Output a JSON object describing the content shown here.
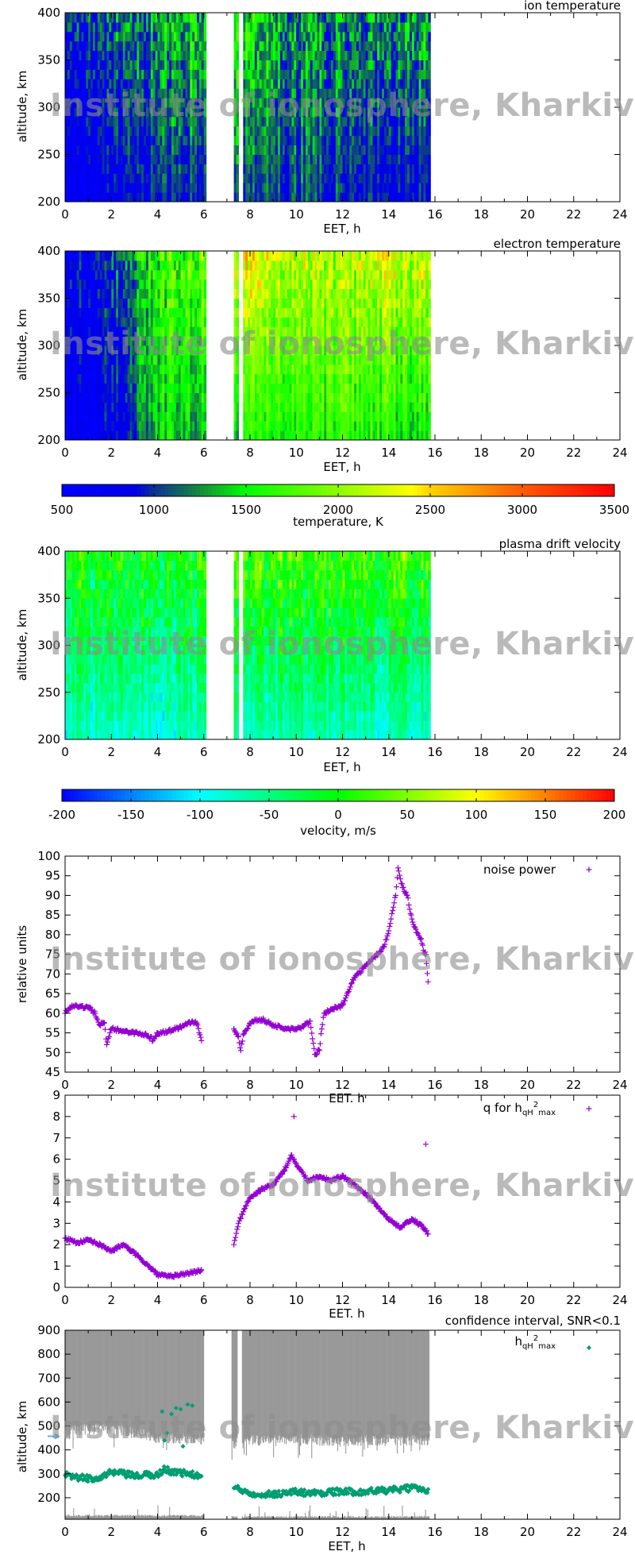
{
  "watermark": "Institute of ionosphere, Kharkiv",
  "colors": {
    "noise_power": "#9400d3",
    "q": "#9400d3",
    "hmax": "#009e73",
    "confidence": "#999999",
    "marker_arrow": "#56b4e9"
  },
  "chart_data": [
    {
      "type": "heatmap",
      "title": "ion temperature",
      "xlabel": "EET, h",
      "ylabel": "altitude, km",
      "xlim": [
        0,
        24
      ],
      "ylim": [
        200,
        400
      ],
      "xticks": [
        "0",
        "2",
        "4",
        "6",
        "8",
        "10",
        "12",
        "14",
        "16",
        "18",
        "20",
        "22",
        "24"
      ],
      "yticks": [
        "200",
        "250",
        "300",
        "350",
        "400"
      ],
      "colorbar": "temperature",
      "data_end_h": 15.75,
      "data_gaps_h": [
        [
          6.0,
          7.2
        ],
        [
          7.45,
          7.65
        ]
      ],
      "hours": [
        0,
        1,
        2,
        3,
        4,
        5,
        6,
        7,
        8,
        9,
        10,
        11,
        12,
        13,
        14,
        15
      ],
      "value_at_400km": [
        900,
        950,
        1000,
        1100,
        1300,
        1450,
        1450,
        1700,
        1500,
        1300,
        1250,
        1250,
        1200,
        1200,
        1250,
        1350
      ],
      "value_at_200km": [
        650,
        650,
        700,
        800,
        1000,
        1000,
        1000,
        900,
        1000,
        1000,
        1050,
        1000,
        950,
        900,
        900,
        900
      ]
    },
    {
      "type": "heatmap",
      "title": "electron temperature",
      "xlabel": "EET, h",
      "ylabel": "altitude, km",
      "xlim": [
        0,
        24
      ],
      "ylim": [
        200,
        400
      ],
      "xticks": [
        "0",
        "2",
        "4",
        "6",
        "8",
        "10",
        "12",
        "14",
        "16",
        "18",
        "20",
        "22",
        "24"
      ],
      "yticks": [
        "200",
        "250",
        "300",
        "350",
        "400"
      ],
      "colorbar": "temperature",
      "data_end_h": 15.75,
      "data_gaps_h": [
        [
          6.0,
          7.2
        ],
        [
          7.45,
          7.65
        ]
      ],
      "hours": [
        0,
        1,
        2,
        3,
        4,
        5,
        6,
        7,
        8,
        9,
        10,
        11,
        12,
        13,
        14,
        15
      ],
      "value_at_400km": [
        800,
        850,
        950,
        1300,
        1700,
        1800,
        1900,
        2200,
        2300,
        2200,
        2200,
        2100,
        2100,
        2200,
        2200,
        2200
      ],
      "value_at_200km": [
        700,
        700,
        800,
        1000,
        1400,
        1400,
        1400,
        1300,
        1500,
        1600,
        1600,
        1600,
        1600,
        1600,
        1500,
        1400
      ]
    },
    {
      "type": "colorbar",
      "name": "temperature",
      "label": "temperature, K",
      "range": [
        500,
        3500
      ],
      "ticks": [
        "500",
        "1000",
        "1500",
        "2000",
        "2500",
        "3000",
        "3500"
      ],
      "stops": [
        [
          500,
          "#0000ff"
        ],
        [
          900,
          "#0000e6"
        ],
        [
          1000,
          "#0a3296"
        ],
        [
          1250,
          "#148c3c"
        ],
        [
          1500,
          "#00ff00"
        ],
        [
          2000,
          "#8cff00"
        ],
        [
          2400,
          "#ffff00"
        ],
        [
          2500,
          "#ffd200"
        ],
        [
          3000,
          "#ff5a00"
        ],
        [
          3500,
          "#ff0000"
        ]
      ]
    },
    {
      "type": "heatmap",
      "title": "plasma drift velocity",
      "xlabel": "EET, h",
      "ylabel": "altitude, km",
      "xlim": [
        0,
        24
      ],
      "ylim": [
        200,
        400
      ],
      "xticks": [
        "0",
        "2",
        "4",
        "6",
        "8",
        "10",
        "12",
        "14",
        "16",
        "18",
        "20",
        "22",
        "24"
      ],
      "yticks": [
        "200",
        "250",
        "300",
        "350",
        "400"
      ],
      "colorbar": "velocity",
      "data_end_h": 15.75,
      "data_gaps_h": [
        [
          6.0,
          7.2
        ],
        [
          7.45,
          7.65
        ]
      ],
      "hours": [
        0,
        1,
        2,
        3,
        4,
        5,
        6,
        7,
        8,
        9,
        10,
        11,
        12,
        13,
        14,
        15
      ],
      "value_at_400km": [
        0,
        0,
        0,
        0,
        0,
        0,
        0,
        20,
        30,
        25,
        20,
        20,
        20,
        20,
        20,
        15
      ],
      "value_at_200km": [
        -80,
        -80,
        -80,
        -80,
        -90,
        -70,
        -70,
        -60,
        -70,
        -70,
        -70,
        -70,
        -70,
        -70,
        -80,
        -80
      ]
    },
    {
      "type": "colorbar",
      "name": "velocity",
      "label": "velocity, m/s",
      "range": [
        -200,
        200
      ],
      "ticks": [
        "-200",
        "-150",
        "-100",
        "-50",
        "0",
        "50",
        "100",
        "150",
        "200"
      ],
      "stops": [
        [
          -200,
          "#0000ff"
        ],
        [
          -100,
          "#00ffff"
        ],
        [
          0,
          "#00ff00"
        ],
        [
          100,
          "#ffff00"
        ],
        [
          200,
          "#ff0000"
        ]
      ]
    },
    {
      "type": "scatter",
      "xlabel": "EET. h",
      "ylabel": "relative units",
      "xlim": [
        0,
        24
      ],
      "ylim": [
        45,
        100
      ],
      "xticks": [
        "0",
        "2",
        "4",
        "6",
        "8",
        "10",
        "12",
        "14",
        "16",
        "18",
        "20",
        "22",
        "24"
      ],
      "yticks": [
        "45",
        "50",
        "55",
        "60",
        "65",
        "70",
        "75",
        "80",
        "85",
        "90",
        "95",
        "100"
      ],
      "series": [
        {
          "name": "noise power",
          "marker": "+",
          "x": [
            0,
            0.3,
            1,
            1.3,
            1.5,
            1.7,
            1.8,
            2,
            2.5,
            3,
            3.5,
            3.7,
            3.8,
            4,
            4.5,
            5,
            5.3,
            5.5,
            5.7,
            5.8,
            5.9,
            7.3,
            7.5,
            7.6,
            7.7,
            8,
            8.1,
            8.5,
            9,
            9.5,
            10,
            10.3,
            10.6,
            10.7,
            10.8,
            11,
            11.1,
            11.2,
            11.5,
            11.8,
            12,
            12.2,
            12.5,
            13,
            13.5,
            13.8,
            14,
            14.1,
            14.2,
            14.3,
            14.4,
            14.6,
            14.8,
            15,
            15.2,
            15.4,
            15.5,
            15.6,
            15.7
          ],
          "y": [
            60,
            62,
            61.5,
            60,
            57,
            57.5,
            52,
            56,
            55.5,
            55,
            54.5,
            54,
            53,
            55,
            55.5,
            56.5,
            57.5,
            58,
            57.5,
            55,
            53,
            56,
            54,
            50.5,
            54.5,
            57.5,
            58,
            58.5,
            57,
            56,
            56,
            56.5,
            58,
            53.5,
            49.5,
            50.5,
            56,
            60,
            61,
            61.5,
            62,
            65,
            69,
            72,
            75,
            77,
            81,
            84,
            87,
            90,
            97,
            92,
            90,
            84,
            80.5,
            79,
            76,
            75,
            68
          ]
        }
      ]
    },
    {
      "type": "scatter",
      "xlabel": "EET. h",
      "ylabel": "",
      "xlim": [
        0,
        24
      ],
      "ylim": [
        0,
        9
      ],
      "xticks": [
        "0",
        "2",
        "4",
        "6",
        "8",
        "10",
        "12",
        "14",
        "16",
        "18",
        "20",
        "22",
        "24"
      ],
      "yticks": [
        "0",
        "1",
        "2",
        "3",
        "4",
        "5",
        "6",
        "7",
        "8",
        "9"
      ],
      "series": [
        {
          "name": "q for hqH2max",
          "legend": {
            "base": "q for h",
            "sub1": "qH",
            "sup": "2",
            "sub2": "max"
          },
          "marker": "+",
          "x": [
            0,
            0.5,
            1,
            1.5,
            2,
            2.5,
            3,
            3.5,
            4,
            4.5,
            5,
            5.5,
            5.9,
            7.3,
            7.5,
            7.8,
            8,
            8.5,
            9,
            9.5,
            9.8,
            10,
            10.5,
            11,
            11.5,
            12,
            12.5,
            13,
            13.5,
            14,
            14.5,
            15,
            15.5,
            15.7
          ],
          "y": [
            2.3,
            2.1,
            2.2,
            2.0,
            1.7,
            2.0,
            1.6,
            1.1,
            0.6,
            0.5,
            0.6,
            0.7,
            0.8,
            2.0,
            3.0,
            3.8,
            4.2,
            4.6,
            4.8,
            5.5,
            6.2,
            5.8,
            5.0,
            5.2,
            5.0,
            5.2,
            4.8,
            4.4,
            3.8,
            3.2,
            2.8,
            3.2,
            2.8,
            2.5
          ],
          "outliers_x": [
            9.9,
            15.6
          ],
          "outliers_y": [
            8.0,
            6.7
          ]
        }
      ]
    },
    {
      "type": "scatter",
      "title": "confidence interval, SNR<0.1",
      "xlabel": "EET, h",
      "ylabel": "altitude, km",
      "xlim": [
        0,
        24
      ],
      "ylim": [
        110,
        900
      ],
      "xticks": [
        "0",
        "2",
        "4",
        "6",
        "8",
        "10",
        "12",
        "14",
        "16",
        "18",
        "20",
        "22",
        "24"
      ],
      "yticks": [
        "200",
        "300",
        "400",
        "500",
        "600",
        "700",
        "800",
        "900"
      ],
      "confidence_interval": {
        "x": [
          0,
          2,
          4,
          6,
          7.2,
          7.45,
          7.65,
          15.75
        ],
        "upper_band_lower_edge": [
          480,
          490,
          450,
          440,
          430,
          430,
          440,
          440
        ],
        "lower_band_upper_edge": [
          125,
          125,
          125,
          125,
          120,
          120,
          120,
          120
        ]
      },
      "marker_arrow_altitude": 457,
      "series": [
        {
          "name": "hqH2max",
          "legend": {
            "base": "h",
            "sub1": "qH",
            "sup": "2",
            "sub2": "max"
          },
          "marker": "diamond",
          "x": [
            0,
            0.5,
            1,
            1.5,
            2,
            2.5,
            3,
            3.5,
            4,
            4.3,
            4.6,
            5,
            5.3,
            5.6,
            5.9,
            7.3,
            7.5,
            8,
            8.5,
            9,
            9.5,
            10,
            10.5,
            11,
            11.5,
            12,
            12.5,
            13,
            13.5,
            14,
            14.5,
            15,
            15.5,
            15.7
          ],
          "y": [
            295,
            285,
            280,
            285,
            305,
            300,
            290,
            295,
            295,
            320,
            310,
            305,
            300,
            295,
            290,
            240,
            235,
            220,
            215,
            215,
            220,
            225,
            220,
            220,
            225,
            225,
            225,
            225,
            230,
            230,
            235,
            240,
            235,
            235
          ],
          "outliers_x": [
            4.2,
            4.4,
            4.6,
            4.8,
            5.0,
            5.3,
            5.5,
            5.1,
            4.3
          ],
          "outliers_y": [
            560,
            470,
            550,
            575,
            570,
            590,
            585,
            415,
            440
          ]
        }
      ]
    }
  ]
}
